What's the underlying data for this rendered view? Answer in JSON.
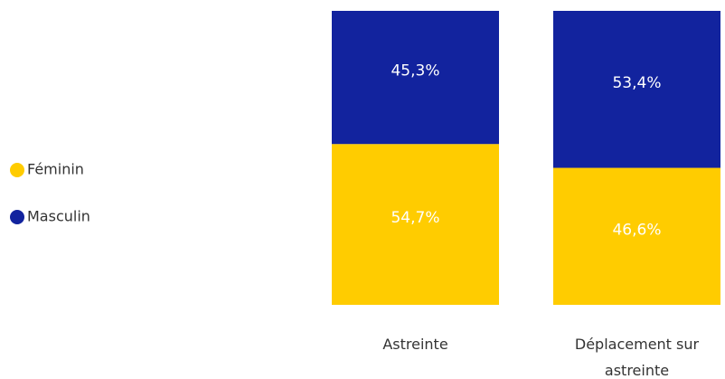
{
  "chart_data": {
    "type": "stacked_bar_100",
    "categories": [
      "Astreinte",
      "Déplacement sur astreinte"
    ],
    "series": [
      {
        "name": "Féminin",
        "color": "#FFCC00",
        "values": [
          54.7,
          46.6
        ],
        "value_labels": [
          "54,7%",
          "46,6%"
        ]
      },
      {
        "name": "Masculin",
        "color": "#12239E",
        "values": [
          45.3,
          53.4
        ],
        "value_labels": [
          "45,3%",
          "53,4%"
        ]
      }
    ],
    "legend": "left"
  }
}
